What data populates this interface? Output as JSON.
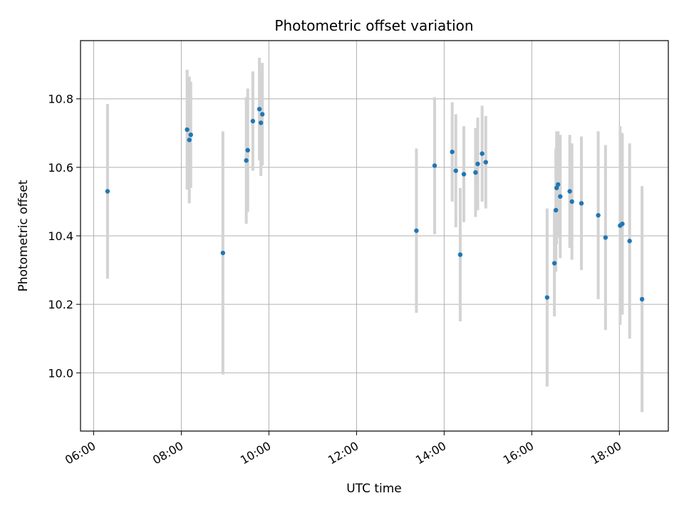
{
  "chart_data": {
    "type": "scatter",
    "title": "Photometric offset variation",
    "xlabel": "UTC time",
    "ylabel": "Photometric offset",
    "xlim": [
      "05:42",
      "19:07"
    ],
    "ylim": [
      9.83,
      10.97
    ],
    "x_ticks": [
      "06:00",
      "08:00",
      "10:00",
      "12:00",
      "14:00",
      "16:00",
      "18:00"
    ],
    "y_ticks": [
      "10.0",
      "10.2",
      "10.4",
      "10.6",
      "10.8"
    ],
    "grid": true,
    "marker_color": "#1f77b4",
    "errorbar_color": "#d3d3d3",
    "series": [
      {
        "points": [
          {
            "x": "06:19",
            "y": 10.53,
            "yerr": 0.255
          },
          {
            "x": "08:08",
            "y": 10.71,
            "yerr": 0.175
          },
          {
            "x": "08:11",
            "y": 10.68,
            "yerr": 0.185
          },
          {
            "x": "08:13",
            "y": 10.695,
            "yerr": 0.155
          },
          {
            "x": "08:57",
            "y": 10.35,
            "yerr": 0.355
          },
          {
            "x": "09:29",
            "y": 10.62,
            "yerr": 0.185
          },
          {
            "x": "09:31",
            "y": 10.65,
            "yerr": 0.18
          },
          {
            "x": "09:38",
            "y": 10.735,
            "yerr": 0.145
          },
          {
            "x": "09:47",
            "y": 10.77,
            "yerr": 0.15
          },
          {
            "x": "09:49",
            "y": 10.73,
            "yerr": 0.155
          },
          {
            "x": "09:51",
            "y": 10.755,
            "yerr": 0.15
          },
          {
            "x": "13:22",
            "y": 10.415,
            "yerr": 0.24
          },
          {
            "x": "13:47",
            "y": 10.605,
            "yerr": 0.2
          },
          {
            "x": "14:11",
            "y": 10.645,
            "yerr": 0.145
          },
          {
            "x": "14:16",
            "y": 10.59,
            "yerr": 0.165
          },
          {
            "x": "14:22",
            "y": 10.345,
            "yerr": 0.195
          },
          {
            "x": "14:27",
            "y": 10.58,
            "yerr": 0.14
          },
          {
            "x": "14:43",
            "y": 10.585,
            "yerr": 0.13
          },
          {
            "x": "14:46",
            "y": 10.61,
            "yerr": 0.135
          },
          {
            "x": "14:52",
            "y": 10.64,
            "yerr": 0.14
          },
          {
            "x": "14:57",
            "y": 10.615,
            "yerr": 0.135
          },
          {
            "x": "16:21",
            "y": 10.22,
            "yerr": 0.26
          },
          {
            "x": "16:31",
            "y": 10.32,
            "yerr": 0.155
          },
          {
            "x": "16:33",
            "y": 10.475,
            "yerr": 0.18
          },
          {
            "x": "16:34",
            "y": 10.54,
            "yerr": 0.165
          },
          {
            "x": "16:36",
            "y": 10.55,
            "yerr": 0.155
          },
          {
            "x": "16:39",
            "y": 10.515,
            "yerr": 0.18
          },
          {
            "x": "16:52",
            "y": 10.53,
            "yerr": 0.165
          },
          {
            "x": "16:55",
            "y": 10.5,
            "yerr": 0.17
          },
          {
            "x": "17:08",
            "y": 10.495,
            "yerr": 0.195
          },
          {
            "x": "17:31",
            "y": 10.46,
            "yerr": 0.245
          },
          {
            "x": "17:41",
            "y": 10.395,
            "yerr": 0.27
          },
          {
            "x": "18:01",
            "y": 10.43,
            "yerr": 0.29
          },
          {
            "x": "18:04",
            "y": 10.435,
            "yerr": 0.265
          },
          {
            "x": "18:14",
            "y": 10.385,
            "yerr": 0.285
          },
          {
            "x": "18:31",
            "y": 10.215,
            "yerr": 0.33
          }
        ]
      }
    ]
  }
}
